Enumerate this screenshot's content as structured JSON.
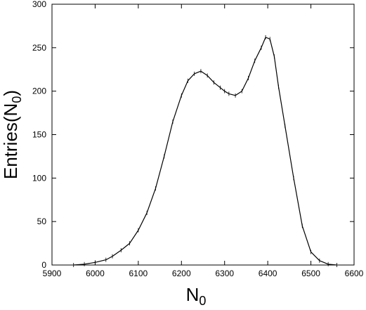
{
  "chart_data": {
    "type": "line",
    "title": "",
    "xlabel": "N",
    "xlabel_sub": "0",
    "ylabel": "Entries(N",
    "ylabel_sub": "0",
    "ylabel_close": ")",
    "xlim": [
      5900,
      6600
    ],
    "ylim": [
      0,
      300
    ],
    "xticks": [
      5900,
      6000,
      6100,
      6200,
      6300,
      6400,
      6500,
      6600
    ],
    "yticks": [
      0,
      50,
      100,
      150,
      200,
      250,
      300
    ],
    "grid": false,
    "legend": "none",
    "line_color": "#000000",
    "series": [
      {
        "x": [
          5950,
          5975,
          6000,
          6025,
          6040,
          6060,
          6080,
          6100,
          6120,
          6140,
          6160,
          6180,
          6200,
          6215,
          6230,
          6245,
          6260,
          6275,
          6290,
          6300,
          6310,
          6325,
          6340,
          6355,
          6370,
          6385,
          6395,
          6405,
          6415,
          6425,
          6440,
          6460,
          6480,
          6500,
          6520,
          6540,
          6560
        ],
        "values": [
          0,
          1,
          3,
          6,
          10,
          17,
          25,
          40,
          60,
          88,
          125,
          165,
          195,
          212,
          220,
          223,
          218,
          210,
          204,
          200,
          197,
          195,
          200,
          215,
          235,
          250,
          262,
          260,
          240,
          205,
          160,
          100,
          45,
          15,
          5,
          1,
          0
        ]
      }
    ]
  }
}
